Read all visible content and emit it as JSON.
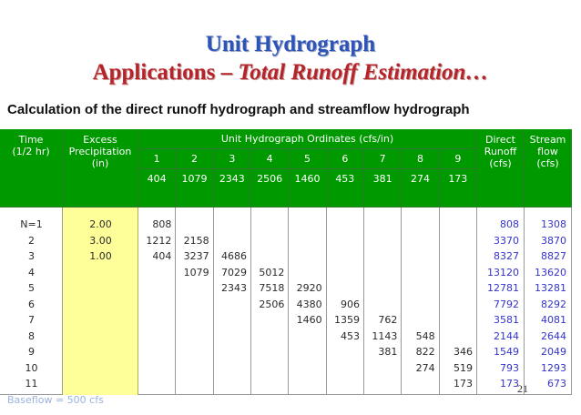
{
  "title_line1": "Unit Hydrograph",
  "title_line2_plain": "Applications – ",
  "title_line2_italic": "Total Runoff Estimation…",
  "subtitle": "Calculation of the direct runoff hydrograph and streamflow hydrograph",
  "header": {
    "time": "Time\n(1/2 hr)",
    "excess": "Excess\nPrecipitation\n(in)",
    "uh": "Unit Hydrograph Ordinates (cfs/in)",
    "direct": "Direct\nRunoff\n(cfs)",
    "stream": "Stream\nflow\n(cfs)",
    "uh_cols": [
      "1",
      "2",
      "3",
      "4",
      "5",
      "6",
      "7",
      "8",
      "9"
    ],
    "uh_ords": [
      "404",
      "1079",
      "2343",
      "2506",
      "1460",
      "453",
      "381",
      "274",
      "173"
    ]
  },
  "columns": {
    "time": [
      "N=1",
      "2",
      "3",
      "4",
      "5",
      "6",
      "7",
      "8",
      "9",
      "10",
      "11"
    ],
    "excess": [
      "2.00",
      "3.00",
      "1.00",
      "",
      "",
      "",
      "",
      "",
      "",
      "",
      ""
    ],
    "c1": [
      "808",
      "1212",
      "404",
      "",
      "",
      "",
      "",
      "",
      "",
      "",
      ""
    ],
    "c2": [
      "",
      "2158",
      "3237",
      "1079",
      "",
      "",
      "",
      "",
      "",
      "",
      ""
    ],
    "c3": [
      "",
      "",
      "4686",
      "7029",
      "2343",
      "",
      "",
      "",
      "",
      "",
      ""
    ],
    "c4": [
      "",
      "",
      "",
      "5012",
      "7518",
      "2506",
      "",
      "",
      "",
      "",
      ""
    ],
    "c5": [
      "",
      "",
      "",
      "",
      "2920",
      "4380",
      "1460",
      "",
      "",
      "",
      ""
    ],
    "c6": [
      "",
      "",
      "",
      "",
      "",
      "906",
      "1359",
      "453",
      "",
      "",
      ""
    ],
    "c7": [
      "",
      "",
      "",
      "",
      "",
      "",
      "762",
      "1143",
      "381",
      "",
      ""
    ],
    "c8": [
      "",
      "",
      "",
      "",
      "",
      "",
      "",
      "548",
      "822",
      "274",
      ""
    ],
    "c9": [
      "",
      "",
      "",
      "",
      "",
      "",
      "",
      "",
      "346",
      "519",
      "173"
    ],
    "direct": [
      "808",
      "3370",
      "8327",
      "13120",
      "12781",
      "7792",
      "3581",
      "2144",
      "1549",
      "793",
      "173"
    ],
    "stream": [
      "1308",
      "3870",
      "8827",
      "13620",
      "13281",
      "8292",
      "4081",
      "2644",
      "2049",
      "1293",
      "673"
    ]
  },
  "baseflow": "Baseflow = 500 cfs",
  "page_number": "21",
  "colors": {
    "header_green": "#009900",
    "precip_yellow": "#ffff99",
    "runoff_blue": "#3333cc",
    "title_blue": "#2f54b8",
    "title_red": "#b5242a"
  }
}
